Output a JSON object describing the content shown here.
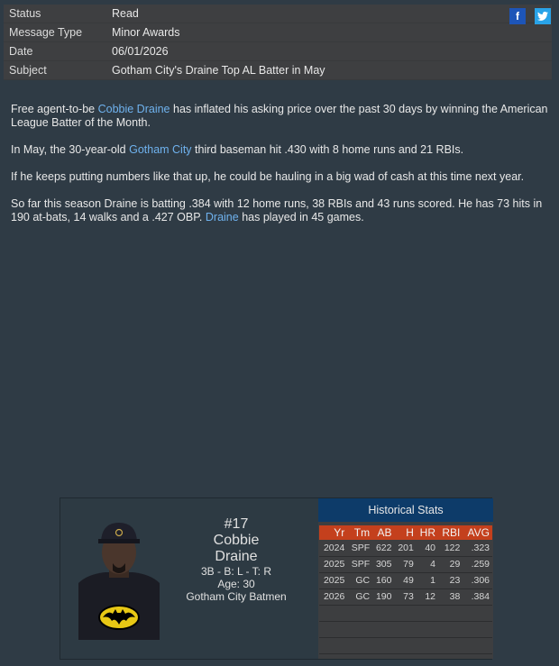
{
  "header": {
    "rows": [
      {
        "label": "Status",
        "value": "Read"
      },
      {
        "label": "Message Type",
        "value": "Minor Awards"
      },
      {
        "label": "Date",
        "value": "06/01/2026"
      },
      {
        "label": "Subject",
        "value": "Gotham City's Draine Top AL Batter in May"
      }
    ],
    "facebook": "f",
    "colors": {
      "facebook": "#1d55b8",
      "twitter": "#29a3e8"
    }
  },
  "body": {
    "p1a": "Free agent-to-be ",
    "p1link": "Cobbie Draine",
    "p1b": " has inflated his asking price over the past 30 days by winning the American League Batter of the Month.",
    "p2a": "In May, the 30-year-old ",
    "p2link": "Gotham City",
    "p2b": " third baseman hit .430 with 8 home runs and 21 RBIs.",
    "p3": "If he keeps putting numbers like that up, he could be hauling in a big wad of cash at this time next year.",
    "p4a": "So far this season Draine is batting .384 with 12 home runs, 38 RBIs and 43 runs scored. He has 73 hits in 190 at-bats, 14 walks and a .427 OBP. ",
    "p4link": "Draine",
    "p4b": " has played in 45 games."
  },
  "player": {
    "number": "#17",
    "first": "Cobbie",
    "last": "Draine",
    "pos": "3B - B: L - T: R",
    "age": "Age: 30",
    "team": "Gotham City Batmen"
  },
  "stats": {
    "title": "Historical Stats",
    "columns": [
      "Yr",
      "Tm",
      "AB",
      "H",
      "HR",
      "RBI",
      "AVG"
    ],
    "rows": [
      [
        "2024",
        "SPF",
        "622",
        "201",
        "40",
        "122",
        ".323"
      ],
      [
        "2025",
        "SPF",
        "305",
        "79",
        "4",
        "29",
        ".259"
      ],
      [
        "2025",
        "GC",
        "160",
        "49",
        "1",
        "23",
        ".306"
      ],
      [
        "2026",
        "GC",
        "190",
        "73",
        "12",
        "38",
        ".384"
      ]
    ]
  }
}
